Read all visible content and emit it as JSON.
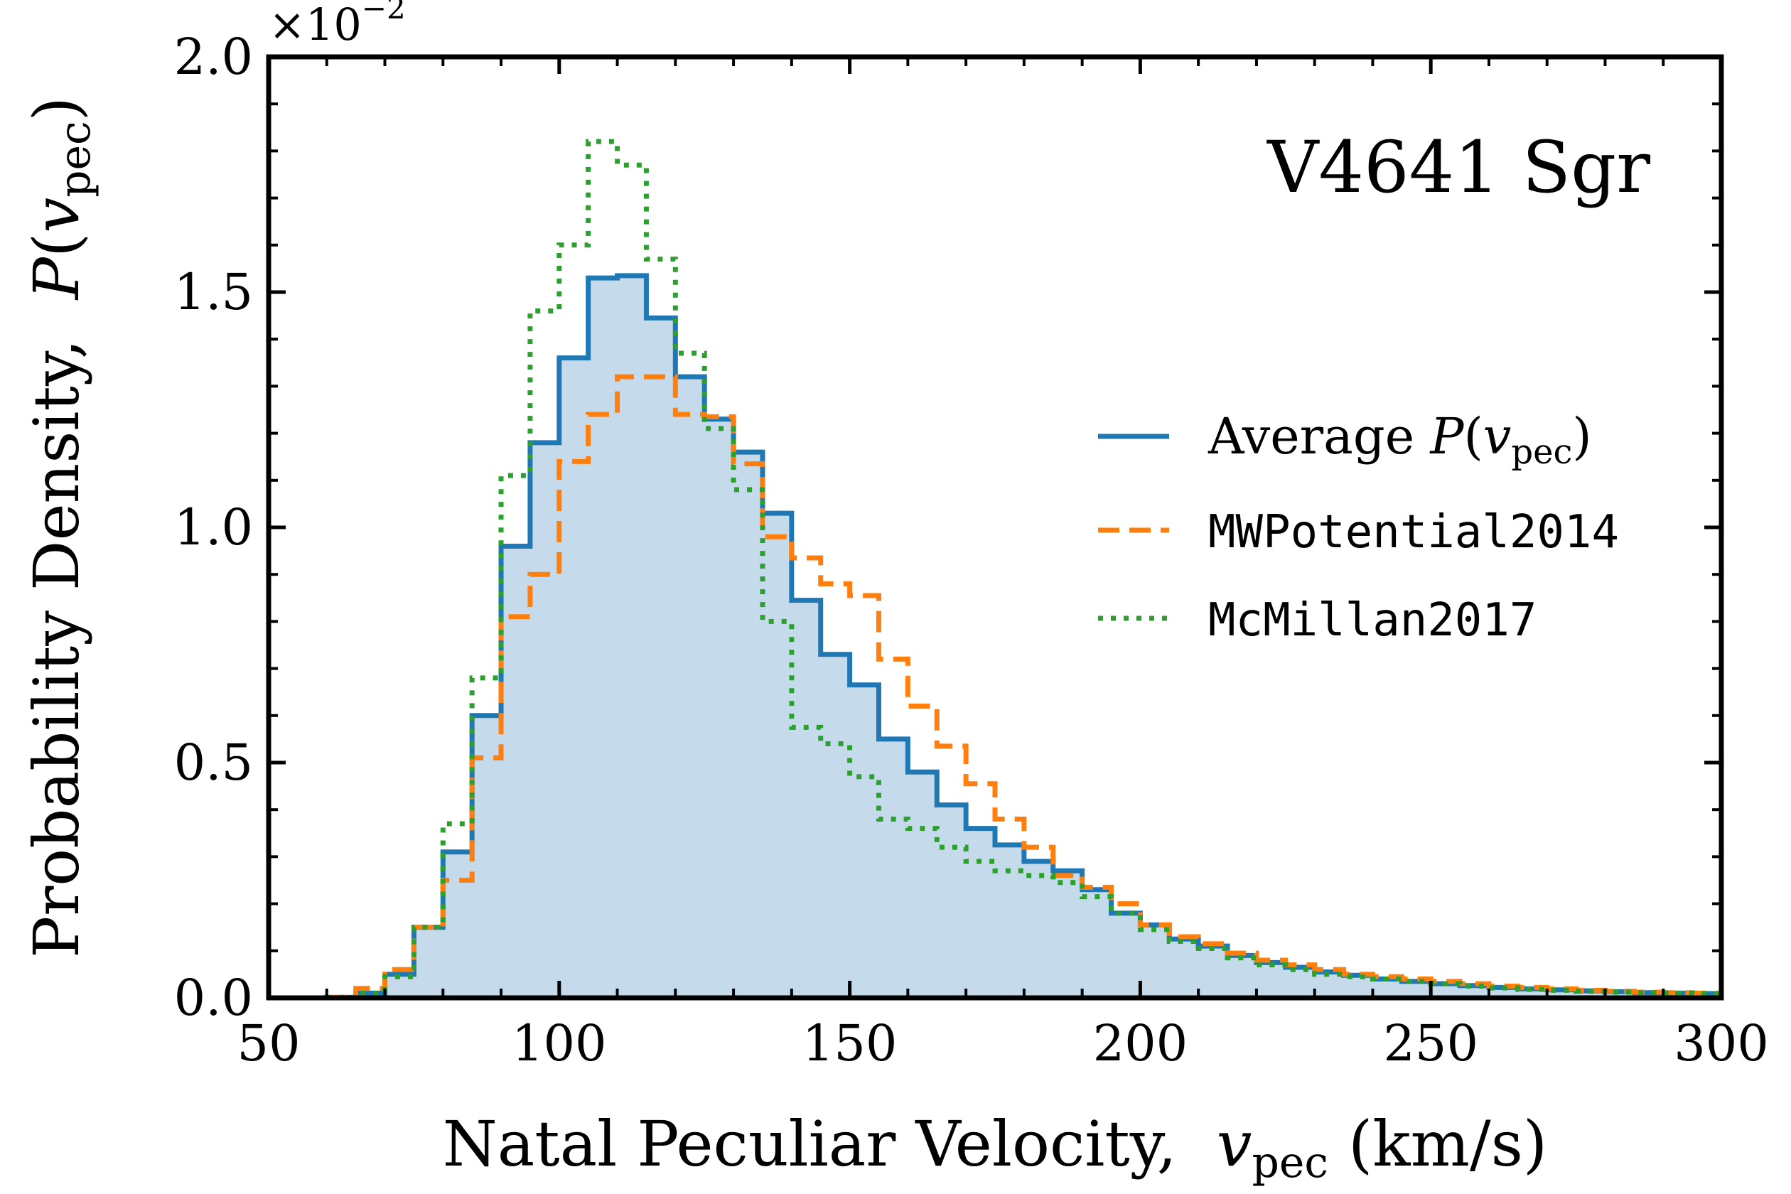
{
  "chart_data": {
    "type": "histogram-step",
    "title": "",
    "annotation": "V4641 Sgr",
    "xlabel": {
      "prefix": "Natal Peculiar Velocity,  ",
      "var": "v",
      "sub": "pec",
      "suffix": " (km/s)"
    },
    "ylabel": {
      "prefix": "Probability Density,  ",
      "func": "P",
      "var": "v",
      "sub": "pec"
    },
    "y_scale_note": {
      "base": "×10",
      "exp": "−2"
    },
    "xlim": [
      50,
      300
    ],
    "ylim": [
      0,
      2.0
    ],
    "xticks": [
      50,
      100,
      150,
      200,
      250,
      300
    ],
    "yticks": [
      0.0,
      0.5,
      1.0,
      1.5,
      2.0
    ],
    "ytick_labels": [
      "0.0",
      "0.5",
      "1.0",
      "1.5",
      "2.0"
    ],
    "bin_edges": [
      60,
      65,
      70,
      75,
      80,
      85,
      90,
      95,
      100,
      105,
      110,
      115,
      120,
      125,
      130,
      135,
      140,
      145,
      150,
      155,
      160,
      165,
      170,
      175,
      180,
      185,
      190,
      195,
      200,
      205,
      210,
      215,
      220,
      225,
      230,
      235,
      240,
      245,
      250,
      255,
      260,
      265,
      270,
      275,
      280,
      285,
      290,
      295,
      300
    ],
    "series": [
      {
        "name": "Average",
        "legend": {
          "prefix": "Average ",
          "func": "P",
          "var": "v",
          "sub": "pec"
        },
        "style": "solid",
        "filled": true,
        "color": "#1f77b4",
        "fill_color": "#c5dbec",
        "values": [
          0.001,
          0.01,
          0.05,
          0.15,
          0.31,
          0.6,
          0.96,
          1.18,
          1.36,
          1.53,
          1.535,
          1.445,
          1.32,
          1.23,
          1.16,
          1.03,
          0.845,
          0.73,
          0.665,
          0.55,
          0.48,
          0.41,
          0.36,
          0.325,
          0.29,
          0.27,
          0.23,
          0.18,
          0.155,
          0.125,
          0.11,
          0.09,
          0.075,
          0.065,
          0.055,
          0.048,
          0.04,
          0.035,
          0.03,
          0.026,
          0.022,
          0.019,
          0.017,
          0.015,
          0.013,
          0.011,
          0.01,
          0.009
        ]
      },
      {
        "name": "MWPotential2014",
        "legend": {
          "label": "MWPotential2014"
        },
        "style": "dashed",
        "filled": false,
        "color": "#ff7f0e",
        "values": [
          0.001,
          0.02,
          0.06,
          0.15,
          0.25,
          0.51,
          0.81,
          0.9,
          1.14,
          1.24,
          1.32,
          1.32,
          1.24,
          1.235,
          1.135,
          0.98,
          0.935,
          0.88,
          0.855,
          0.72,
          0.62,
          0.535,
          0.455,
          0.38,
          0.32,
          0.26,
          0.235,
          0.2,
          0.155,
          0.13,
          0.115,
          0.095,
          0.08,
          0.07,
          0.06,
          0.05,
          0.045,
          0.04,
          0.035,
          0.03,
          0.025,
          0.022,
          0.019,
          0.016,
          0.014,
          0.012,
          0.011,
          0.01
        ]
      },
      {
        "name": "McMillan2017",
        "legend": {
          "label": "McMillan2017"
        },
        "style": "dotted",
        "filled": false,
        "color": "#2ca02c",
        "values": [
          0.001,
          0.01,
          0.045,
          0.15,
          0.37,
          0.68,
          1.11,
          1.46,
          1.6,
          1.82,
          1.77,
          1.57,
          1.37,
          1.21,
          1.08,
          0.8,
          0.575,
          0.54,
          0.47,
          0.38,
          0.36,
          0.32,
          0.29,
          0.27,
          0.26,
          0.245,
          0.215,
          0.18,
          0.145,
          0.12,
          0.105,
          0.085,
          0.07,
          0.06,
          0.05,
          0.045,
          0.04,
          0.035,
          0.03,
          0.025,
          0.021,
          0.018,
          0.016,
          0.014,
          0.012,
          0.011,
          0.01,
          0.009
        ]
      }
    ],
    "legend_position": "center-right"
  }
}
